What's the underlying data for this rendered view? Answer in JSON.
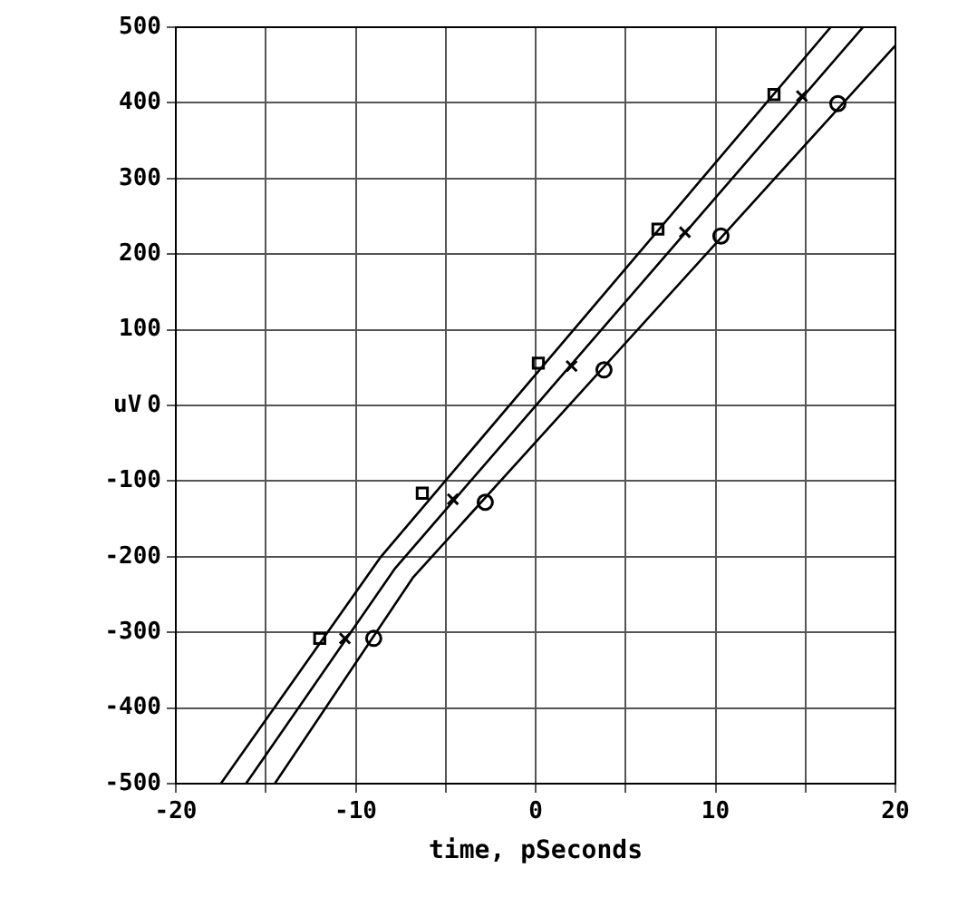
{
  "chart_data": {
    "type": "line",
    "xlabel": "time, pSeconds",
    "ylabel": "uV",
    "xlim": [
      -20,
      20
    ],
    "ylim": [
      -500,
      500
    ],
    "xticks": [
      -20,
      {
        "value": -15,
        "label": null
      },
      -10,
      {
        "value": -5,
        "label": null
      },
      0,
      {
        "value": 5,
        "label": null
      },
      10,
      {
        "value": 15,
        "label": null
      },
      20
    ],
    "yticks": [
      -500,
      -400,
      -300,
      -200,
      -100,
      0,
      100,
      200,
      300,
      400,
      500
    ],
    "grid": true,
    "legend": false,
    "series": [
      {
        "marker": "none",
        "color": "#000000",
        "x": [
          -17.5,
          -8.6,
          16.4
        ],
        "values": [
          -500,
          -200,
          500
        ]
      },
      {
        "marker": "none",
        "color": "#000000",
        "x": [
          -16.1,
          -7.8,
          18.2
        ],
        "values": [
          -500,
          -215,
          500
        ]
      },
      {
        "marker": "none",
        "color": "#000000",
        "x": [
          -14.5,
          -6.8,
          20
        ],
        "values": [
          -500,
          -227,
          476
        ]
      },
      {
        "type": "scatter",
        "marker": "square",
        "color": "#000000",
        "x": [
          -12.0,
          -6.3,
          0.15,
          6.8,
          13.25
        ],
        "values": [
          -308,
          -116,
          56,
          233,
          411
        ]
      },
      {
        "type": "scatter",
        "marker": "cross",
        "color": "#000000",
        "x": [
          -10.6,
          -4.6,
          2.0,
          8.3,
          14.8
        ],
        "values": [
          -308,
          -124,
          52,
          229,
          409
        ]
      },
      {
        "type": "scatter",
        "marker": "circle",
        "color": "#000000",
        "x": [
          -9.0,
          -2.8,
          3.8,
          10.3,
          16.8
        ],
        "values": [
          -308,
          -128,
          47,
          224,
          399
        ]
      }
    ]
  }
}
